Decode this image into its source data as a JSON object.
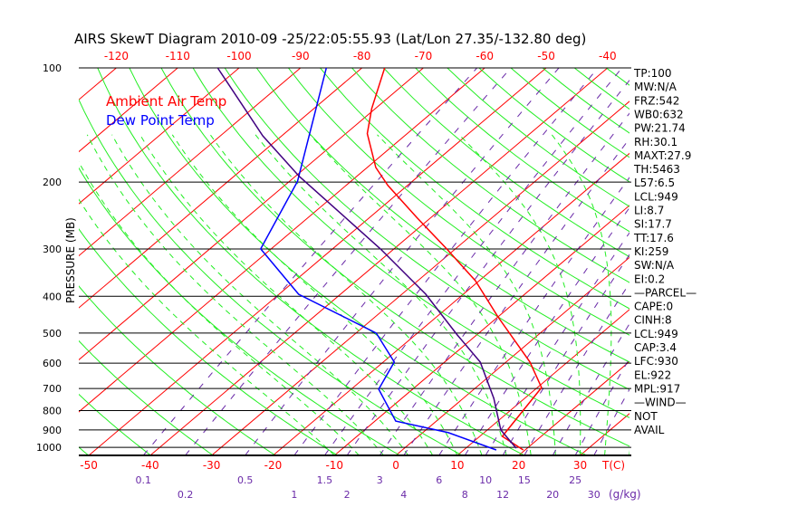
{
  "chart_data": {
    "type": "line",
    "title": "AIRS SkewT Diagram 2010-09 -25/22:05:55.93 (Lat/Lon 27.35/-132.80 deg)",
    "ylabel": "PRESSURE (MB)",
    "xlabel": "T(C)",
    "mixing_ratio_label": "(g/kg)",
    "ylim": [
      1050,
      100
    ],
    "pressure_ticks": [
      100,
      200,
      300,
      400,
      500,
      600,
      700,
      800,
      900,
      1000
    ],
    "bottom_temp_ticks": [
      -50,
      -40,
      -30,
      -20,
      -10,
      0,
      10,
      20,
      30
    ],
    "top_temp_ticks": [
      -120,
      -110,
      -100,
      -90,
      -80,
      -70,
      -60,
      -50,
      -40
    ],
    "mixing_ratio_ticks": [
      0.1,
      0.2,
      0.5,
      1,
      1.5,
      2,
      3,
      4,
      6,
      8,
      10,
      12,
      15,
      20,
      25,
      30
    ],
    "legend": [
      {
        "label": "Ambient Air Temp",
        "color": "#ff0000"
      },
      {
        "label": "Dew Point Temp",
        "color": "#0000ff"
      }
    ],
    "series": [
      {
        "name": "Ambient Air Temp",
        "color": "#ff0000",
        "p": [
          1016,
          936,
          696,
          596,
          453,
          364,
          300,
          248,
          204,
          183,
          149,
          128,
          100
        ],
        "T": [
          19.7,
          13.7,
          10.7,
          3.9,
          -10,
          -20.6,
          -31.4,
          -42.3,
          -53.2,
          -58.6,
          -66.5,
          -70.6,
          -76.3
        ]
      },
      {
        "name": "Dew Point Temp",
        "color": "#0000ff",
        "p": [
          1016,
          915,
          853,
          703,
          596,
          500,
          395,
          300,
          199,
          143,
          100
        ],
        "T": [
          15.3,
          4.2,
          -6.6,
          -15.5,
          -18.2,
          -26.7,
          -46.8,
          -61.7,
          -68.7,
          -76.9,
          -85.8
        ]
      },
      {
        "name": "Parcel",
        "color": "#400080",
        "p": [
          1005,
          900,
          743,
          596,
          506,
          395,
          300,
          193,
          151,
          100
        ],
        "T": [
          18.2,
          12.2,
          5.0,
          -4.2,
          -13.1,
          -26.1,
          -42.2,
          -69.4,
          -83.1,
          -103.5
        ]
      }
    ],
    "indices": [
      "TP:100",
      "MW:N/A",
      "FRZ:542",
      "WB0:632",
      "PW:21.74",
      "RH:30.1",
      "MAXT:27.9",
      "TH:5463",
      "L57:6.5",
      "LCL:949",
      "LI:8.7",
      "SI:17.7",
      "TT:17.6",
      "KI:259",
      "SW:N/A",
      "EI:0.2",
      "—PARCEL—",
      "CAPE:0",
      "CINH:8",
      "LCL:949",
      "CAP:3.4",
      "LFC:930",
      "EL:922",
      "MPL:917",
      "—WIND—",
      "NOT",
      "AVAIL"
    ],
    "colors": {
      "isotherm": "#ff0000",
      "adiabat": "#22ee22",
      "mixing": "#6a2aa8",
      "axis": "#000000"
    }
  }
}
